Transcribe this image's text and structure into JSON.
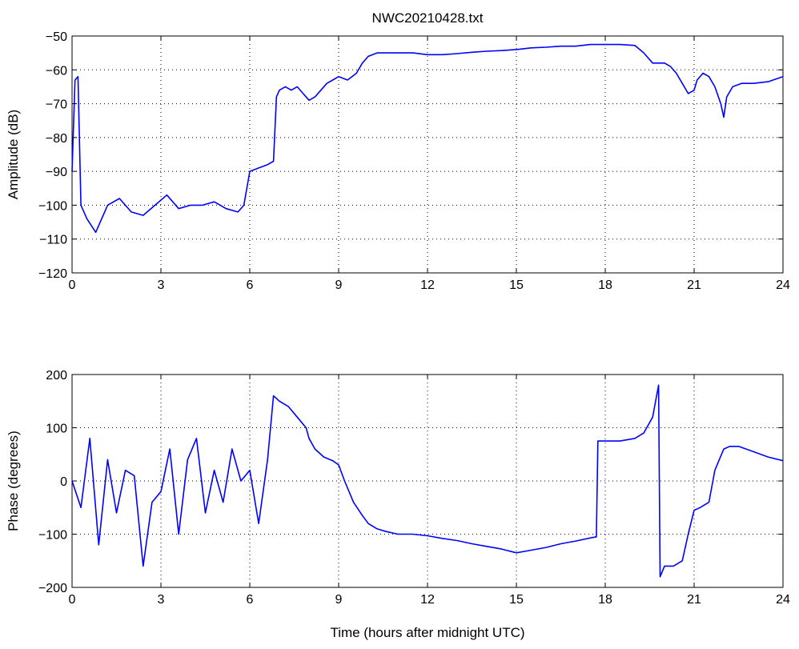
{
  "chart_data": [
    {
      "type": "line",
      "title": "NWC20210428.txt",
      "xlabel": "",
      "ylabel": "Amplitude (dB)",
      "xlim": [
        0,
        24
      ],
      "ylim": [
        -120,
        -50
      ],
      "xticks": [
        0,
        3,
        6,
        9,
        12,
        15,
        18,
        21,
        24
      ],
      "yticks": [
        -50,
        -60,
        -70,
        -80,
        -90,
        -100,
        -110,
        -120
      ],
      "grid": true,
      "line_color": "#0000ff",
      "series": [
        {
          "x": [
            0,
            0.1,
            0.2,
            0.3,
            0.5,
            0.8,
            1.2,
            1.6,
            2.0,
            2.4,
            2.8,
            3.2,
            3.6,
            4.0,
            4.4,
            4.8,
            5.2,
            5.6,
            5.8,
            6.0,
            6.3,
            6.6,
            6.8,
            6.9,
            7.0,
            7.2,
            7.4,
            7.6,
            7.8,
            8.0,
            8.2,
            8.4,
            8.6,
            8.8,
            9.0,
            9.3,
            9.6,
            9.8,
            10.0,
            10.3,
            10.6,
            11.0,
            11.5,
            12.0,
            12.5,
            13.0,
            13.5,
            14.0,
            14.5,
            15.0,
            15.5,
            16.0,
            16.5,
            17.0,
            17.5,
            18.0,
            18.5,
            19.0,
            19.3,
            19.6,
            19.8,
            20.0,
            20.2,
            20.4,
            20.6,
            20.8,
            21.0,
            21.1,
            21.3,
            21.5,
            21.7,
            21.9,
            22.0,
            22.1,
            22.3,
            22.6,
            23.0,
            23.5,
            24.0
          ],
          "y": [
            -90,
            -63,
            -62,
            -100,
            -104,
            -108,
            -100,
            -98,
            -102,
            -103,
            -100,
            -97,
            -101,
            -100,
            -100,
            -99,
            -101,
            -102,
            -100,
            -90,
            -89,
            -88,
            -87,
            -68,
            -66,
            -65,
            -66,
            -65,
            -67,
            -69,
            -68,
            -66,
            -64,
            -63,
            -62,
            -63,
            -61,
            -58,
            -56,
            -55,
            -55,
            -55,
            -55,
            -55.5,
            -55.5,
            -55.2,
            -54.8,
            -54.5,
            -54.3,
            -54,
            -53.5,
            -53.3,
            -53,
            -53,
            -52.5,
            -52.5,
            -52.5,
            -52.8,
            -55,
            -58,
            -58,
            -58,
            -59,
            -61,
            -64,
            -67,
            -66,
            -63,
            -61,
            -62,
            -65,
            -70,
            -74,
            -68,
            -65,
            -64,
            -64,
            -63.5,
            -62
          ]
        }
      ]
    },
    {
      "type": "line",
      "title": "",
      "xlabel": "Time (hours after midnight UTC)",
      "ylabel": "Phase (degrees)",
      "xlim": [
        0,
        24
      ],
      "ylim": [
        -200,
        200
      ],
      "xticks": [
        0,
        3,
        6,
        9,
        12,
        15,
        18,
        21,
        24
      ],
      "yticks": [
        200,
        100,
        0,
        -100,
        -200
      ],
      "grid": true,
      "line_color": "#0000ff",
      "series": [
        {
          "x": [
            0,
            0.3,
            0.6,
            0.9,
            1.2,
            1.5,
            1.8,
            2.1,
            2.4,
            2.7,
            3.0,
            3.3,
            3.6,
            3.9,
            4.2,
            4.5,
            4.8,
            5.1,
            5.4,
            5.7,
            6.0,
            6.3,
            6.6,
            6.8,
            7.0,
            7.3,
            7.6,
            7.9,
            8.0,
            8.2,
            8.5,
            8.8,
            9.0,
            9.2,
            9.5,
            9.8,
            10.0,
            10.3,
            10.6,
            11.0,
            11.5,
            12.0,
            12.5,
            13.0,
            13.5,
            14.0,
            14.5,
            15.0,
            15.5,
            16.0,
            16.5,
            17.0,
            17.5,
            17.7,
            17.75,
            18.0,
            18.5,
            19.0,
            19.3,
            19.6,
            19.8,
            19.85,
            20.0,
            20.3,
            20.6,
            20.8,
            21.0,
            21.2,
            21.5,
            21.7,
            22.0,
            22.2,
            22.5,
            23.0,
            23.5,
            24.0
          ],
          "y": [
            0,
            -50,
            80,
            -120,
            40,
            -60,
            20,
            10,
            -160,
            -40,
            -20,
            60,
            -100,
            40,
            80,
            -60,
            20,
            -40,
            60,
            0,
            20,
            -80,
            40,
            160,
            150,
            140,
            120,
            100,
            80,
            60,
            45,
            38,
            30,
            0,
            -40,
            -65,
            -80,
            -90,
            -95,
            -100,
            -100,
            -103,
            -108,
            -112,
            -118,
            -123,
            -128,
            -135,
            -130,
            -125,
            -118,
            -113,
            -107,
            -105,
            75,
            75,
            75,
            80,
            90,
            120,
            180,
            -180,
            -160,
            -160,
            -150,
            -100,
            -55,
            -50,
            -40,
            20,
            60,
            65,
            65,
            55,
            45,
            38
          ]
        }
      ]
    }
  ]
}
